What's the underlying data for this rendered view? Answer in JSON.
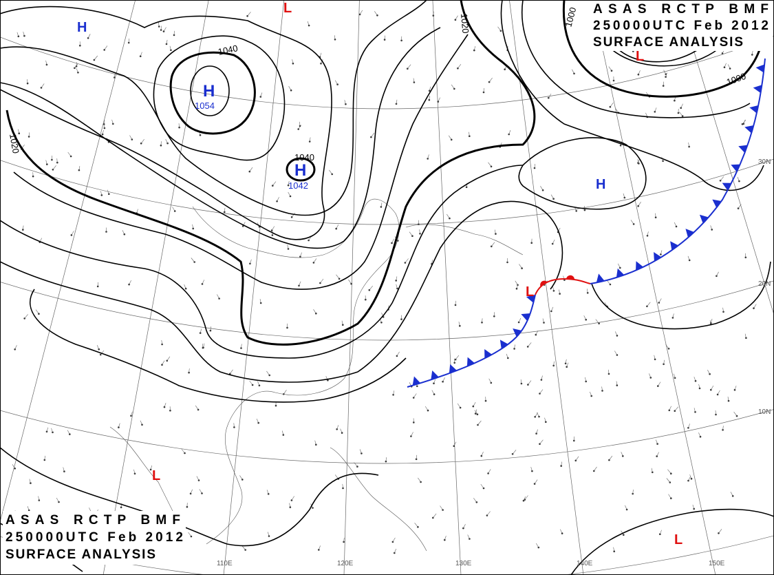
{
  "title_blocks": [
    {
      "line1": "ASAS RCTP BMF",
      "line2": "250000UTC Feb 2012",
      "line3": "SURFACE ANALYSIS"
    },
    {
      "line1": "ASAS RCTP BMF",
      "line2": "250000UTC Feb 2012",
      "line3": "SURFACE ANALYSIS"
    }
  ],
  "pressure_centers": [
    {
      "symbol": "H",
      "pressure": "1054"
    },
    {
      "symbol": "H",
      "pressure": "1042"
    },
    {
      "symbol": "H"
    },
    {
      "symbol": "H"
    },
    {
      "symbol": "L"
    },
    {
      "symbol": "L"
    },
    {
      "symbol": "L"
    },
    {
      "symbol": "L"
    },
    {
      "symbol": "L"
    }
  ],
  "isobar_labels": [
    "1040",
    "1040",
    "1020",
    "1020",
    "1000",
    "1000"
  ],
  "latitude_labels": [
    "30N",
    "20N",
    "10N"
  ],
  "longitude_labels": [
    "110E",
    "120E",
    "130E",
    "140E",
    "150E"
  ]
}
